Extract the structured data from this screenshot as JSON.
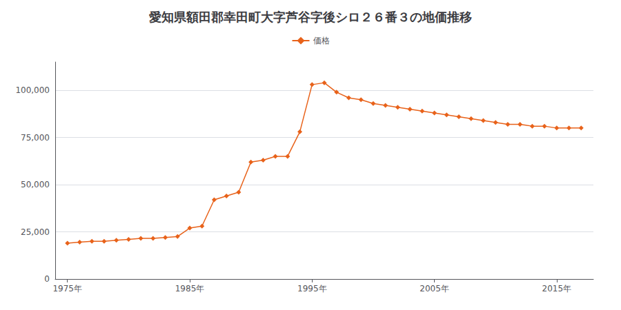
{
  "chart_data": {
    "type": "line",
    "title": "愛知県額田郡幸田町大字芦谷字後シロ２６番３の地価推移",
    "x": [
      1975,
      1976,
      1977,
      1978,
      1979,
      1980,
      1981,
      1982,
      1983,
      1984,
      1985,
      1986,
      1987,
      1988,
      1989,
      1990,
      1991,
      1992,
      1993,
      1994,
      1995,
      1996,
      1997,
      1998,
      1999,
      2000,
      2001,
      2002,
      2003,
      2004,
      2005,
      2006,
      2007,
      2008,
      2009,
      2010,
      2011,
      2012,
      2013,
      2014,
      2015,
      2016,
      2017
    ],
    "series": [
      {
        "name": "価格",
        "color": "#E8621A",
        "marker": "diamond",
        "values": [
          19000,
          19500,
          20000,
          20000,
          20500,
          21000,
          21500,
          21500,
          22000,
          22500,
          27000,
          28000,
          42000,
          44000,
          46000,
          62000,
          63000,
          65000,
          65000,
          78000,
          103000,
          104000,
          99000,
          96000,
          95000,
          93000,
          92000,
          91000,
          90000,
          89000,
          88000,
          87000,
          86000,
          85000,
          84000,
          83000,
          82000,
          82000,
          81000,
          81000,
          80000,
          80000,
          80000
        ]
      }
    ],
    "xlim": [
      1974,
      2018
    ],
    "xticks": [
      {
        "value": 1975,
        "label": "1975年"
      },
      {
        "value": 1985,
        "label": "1985年"
      },
      {
        "value": 1995,
        "label": "1995年"
      },
      {
        "value": 2005,
        "label": "2005年"
      },
      {
        "value": 2015,
        "label": "2015年"
      }
    ],
    "ylim": [
      0,
      115000
    ],
    "yticks": [
      0,
      {
        "value": 25000,
        "label": "25,000"
      },
      {
        "value": 50000,
        "label": "50,000"
      },
      {
        "value": 75000,
        "label": "75,000"
      },
      {
        "value": 100000,
        "label": "100,000"
      }
    ],
    "grid": true,
    "legend": "top"
  }
}
